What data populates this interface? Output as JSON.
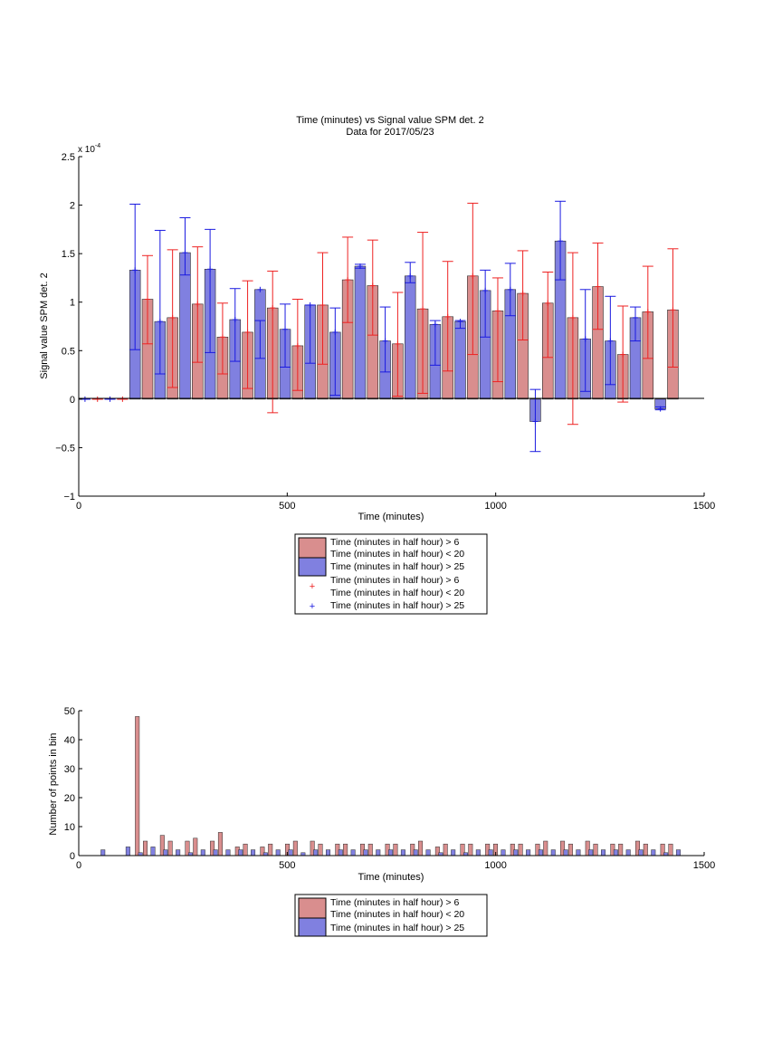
{
  "colors": {
    "red_fill": "#d98e8e",
    "blue_fill": "#8080e0",
    "red_marker": "#ee2222",
    "blue_marker": "#1a1ae0",
    "axis": "#000000"
  },
  "chart_data": [
    {
      "type": "bar",
      "title": "Time (minutes) vs Signal value SPM det. 2",
      "subtitle": "Data for 2017/05/23",
      "xlabel": "Time (minutes)",
      "ylabel": "Signal value SPM det. 2",
      "y_exponent": "x 10",
      "y_exponent_power": "-4",
      "xlim": [
        0,
        1500
      ],
      "ylim": [
        -1,
        2.5
      ],
      "xticks": [
        "0",
        "500",
        "1000",
        "1500"
      ],
      "yticks": [
        "−1",
        "−0.5",
        "0",
        "0.5",
        "1",
        "1.5",
        "2",
        "2.5"
      ],
      "legend_position": "below",
      "legend": [
        "Time (minutes in half hour) > 6",
        "Time (minutes in half hour) < 20",
        "Time (minutes in half hour) > 25",
        "Time (minutes in half hour) > 6",
        "Time (minutes in half hour) < 20",
        "Time (minutes in half hour) > 25"
      ],
      "bin_width_minutes": 30,
      "red_series": {
        "x": [
          45,
          105,
          165,
          225,
          285,
          345,
          405,
          465,
          525,
          585,
          645,
          705,
          765,
          825,
          885,
          945,
          1005,
          1065,
          1125,
          1185,
          1245,
          1305,
          1365,
          1425
        ],
        "mean": [
          0,
          0,
          1.03,
          0.84,
          0.98,
          0.64,
          0.69,
          0.94,
          0.55,
          0.97,
          1.23,
          1.17,
          0.57,
          0.93,
          0.85,
          1.27,
          0.91,
          1.09,
          0.99,
          0.84,
          1.16,
          0.46,
          0.9,
          0.92
        ],
        "lower": [
          0,
          0,
          0.57,
          0.12,
          0.38,
          0.26,
          0.11,
          -0.14,
          0.09,
          0.36,
          0.79,
          0.66,
          0.03,
          0.06,
          0.29,
          0.46,
          0.18,
          0.61,
          0.43,
          -0.26,
          0.72,
          -0.03,
          0.42,
          0.33
        ],
        "upper": [
          0,
          0,
          1.48,
          1.54,
          1.57,
          0.99,
          1.22,
          1.32,
          1.03,
          1.51,
          1.67,
          1.64,
          1.1,
          1.72,
          1.42,
          2.02,
          1.25,
          1.53,
          1.31,
          1.51,
          1.61,
          0.96,
          1.37,
          1.55
        ]
      },
      "blue_series": {
        "x": [
          15,
          75,
          135,
          195,
          255,
          315,
          375,
          435,
          495,
          555,
          615,
          675,
          735,
          795,
          855,
          915,
          975,
          1035,
          1095,
          1155,
          1215,
          1275,
          1335,
          1395
        ],
        "mean": [
          0,
          0,
          1.33,
          0.8,
          1.51,
          1.34,
          0.82,
          1.13,
          0.72,
          0.97,
          0.69,
          1.37,
          0.6,
          1.27,
          0.77,
          0.8,
          1.12,
          1.13,
          -0.23,
          1.63,
          0.62,
          0.6,
          0.84,
          -0.1
        ],
        "lower": [
          0,
          0,
          0.51,
          0.26,
          1.28,
          0.48,
          0.39,
          0.42,
          0.33,
          0.37,
          0.04,
          1.35,
          0.28,
          1.2,
          0.35,
          0.73,
          0.64,
          0.86,
          -0.54,
          1.23,
          0.08,
          0.15,
          0.6,
          -0.11
        ],
        "upper": [
          0,
          0,
          2.01,
          1.74,
          1.87,
          1.75,
          1.14,
          0.81,
          0.98,
          0.97,
          0.94,
          1.39,
          0.95,
          1.41,
          0.81,
          0.81,
          1.33,
          1.4,
          0.1,
          2.04,
          1.13,
          1.06,
          0.95,
          -0.08
        ]
      }
    },
    {
      "type": "bar",
      "xlabel": "Time (minutes)",
      "ylabel": "Number of points in bin",
      "xlim": [
        0,
        1500
      ],
      "ylim": [
        0,
        50
      ],
      "xticks": [
        "0",
        "500",
        "1000",
        "1500"
      ],
      "yticks": [
        "0",
        "10",
        "20",
        "30",
        "40",
        "50"
      ],
      "legend_position": "below",
      "legend": [
        "Time (minutes in half hour) > 6",
        "Time (minutes in half hour) < 20",
        "Time (minutes in half hour) > 25"
      ],
      "red_series": {
        "x": [
          45,
          105,
          165,
          225,
          285,
          345,
          405,
          465,
          525,
          585,
          645,
          705,
          765,
          825,
          885,
          945,
          1005,
          1065,
          1125,
          1185,
          1245,
          1305,
          1365,
          1425
        ],
        "counts": [
          0,
          0,
          5,
          5,
          6,
          8,
          4,
          4,
          5,
          4,
          4,
          4,
          4,
          5,
          4,
          4,
          4,
          4,
          5,
          4,
          4,
          4,
          4,
          4
        ]
      },
      "red_series_b": {
        "x": [
          135,
          195,
          255,
          315,
          375,
          435,
          495,
          555,
          615,
          675,
          735,
          795,
          855,
          915,
          975,
          1035,
          1095,
          1155,
          1215,
          1275,
          1335,
          1395
        ],
        "counts": [
          48,
          7,
          5,
          5,
          3,
          3,
          4,
          5,
          4,
          4,
          4,
          4,
          3,
          4,
          4,
          4,
          4,
          5,
          5,
          4,
          5,
          4
        ]
      },
      "blue_series": {
        "x": [
          45,
          105,
          135,
          165,
          195,
          225,
          255,
          285,
          315,
          345,
          375,
          405,
          435,
          465,
          495,
          525,
          555,
          585,
          615,
          645,
          675,
          705,
          735,
          765,
          795,
          825,
          855,
          885,
          915,
          945,
          975,
          1005,
          1035,
          1065,
          1095,
          1125,
          1155,
          1185,
          1215,
          1245,
          1275,
          1305,
          1335,
          1365,
          1395,
          1425
        ],
        "counts": [
          2,
          3,
          1,
          3,
          2,
          2,
          1,
          2,
          2,
          2,
          2,
          2,
          1,
          2,
          2,
          1,
          2,
          2,
          2,
          2,
          2,
          2,
          2,
          2,
          2,
          2,
          1,
          2,
          1,
          2,
          2,
          2,
          2,
          2,
          2,
          2,
          2,
          2,
          2,
          2,
          2,
          2,
          2,
          2,
          1,
          2
        ]
      }
    }
  ]
}
